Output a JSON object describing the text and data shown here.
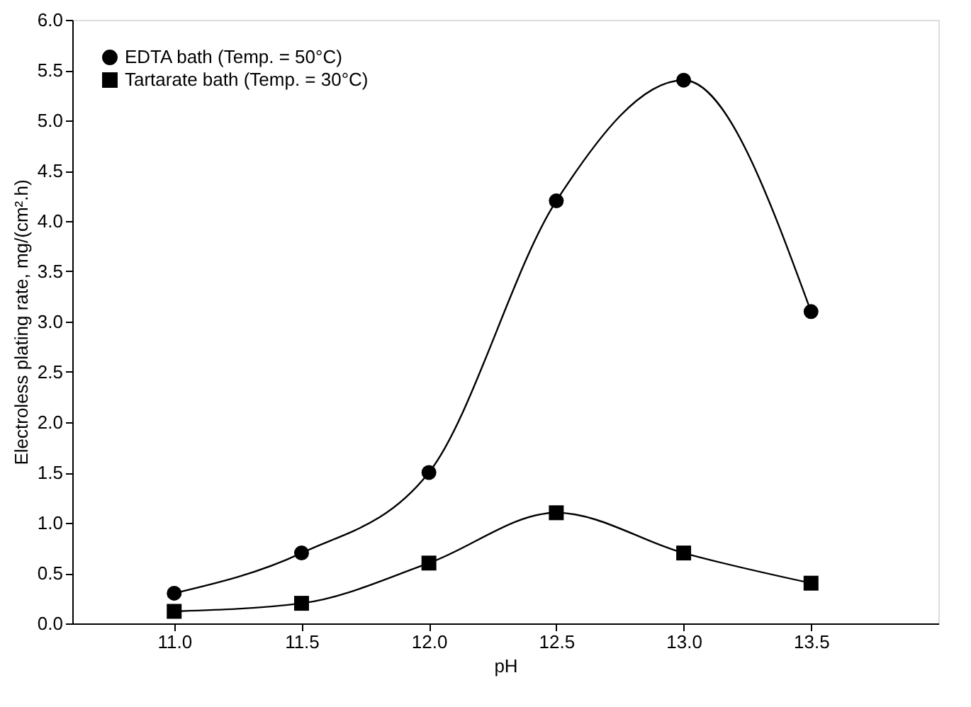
{
  "chart_data": {
    "type": "line",
    "xlabel": "pH",
    "ylabel": "Electroless plating rate, mg/(cm².h)",
    "x": [
      11.0,
      11.5,
      12.0,
      12.5,
      13.0,
      13.5
    ],
    "series": [
      {
        "name": "EDTA bath (Temp. = 50°C)",
        "color": "#000000",
        "marker": "circle",
        "values": [
          0.3,
          0.7,
          1.5,
          4.2,
          5.4,
          3.1
        ]
      },
      {
        "name": "Tartarate bath (Temp. = 30°C)",
        "color": "#000000",
        "marker": "square",
        "values": [
          0.12,
          0.2,
          0.6,
          1.1,
          0.7,
          0.4
        ]
      }
    ],
    "xlim": [
      10.6,
      14.0
    ],
    "xticks": [
      {
        "value": 11,
        "label": "11.0"
      },
      {
        "value": 11.5,
        "label": "11.5"
      },
      {
        "value": 12,
        "label": "12.0"
      },
      {
        "value": 12.5,
        "label": "12.5"
      },
      {
        "value": 13,
        "label": "13.0"
      },
      {
        "value": 13.5,
        "label": "13.5"
      }
    ],
    "ylim": [
      0,
      6
    ],
    "yticks": [
      {
        "value": 0,
        "label": "0.0"
      },
      {
        "value": 0.5,
        "label": "0.5"
      },
      {
        "value": 1,
        "label": "1.0"
      },
      {
        "value": 1.5,
        "label": "1.5"
      },
      {
        "value": 2,
        "label": "2.0"
      },
      {
        "value": 2.5,
        "label": "2.5"
      },
      {
        "value": 3,
        "label": "3.0"
      },
      {
        "value": 3.5,
        "label": "3.5"
      },
      {
        "value": 4,
        "label": "4.0"
      },
      {
        "value": 4.5,
        "label": "4.5"
      },
      {
        "value": 5,
        "label": "5.0"
      },
      {
        "value": 5.5,
        "label": "5.5"
      },
      {
        "value": 6,
        "label": "6.0"
      }
    ],
    "legend": "top left",
    "grid": false,
    "line_style": "solid"
  }
}
